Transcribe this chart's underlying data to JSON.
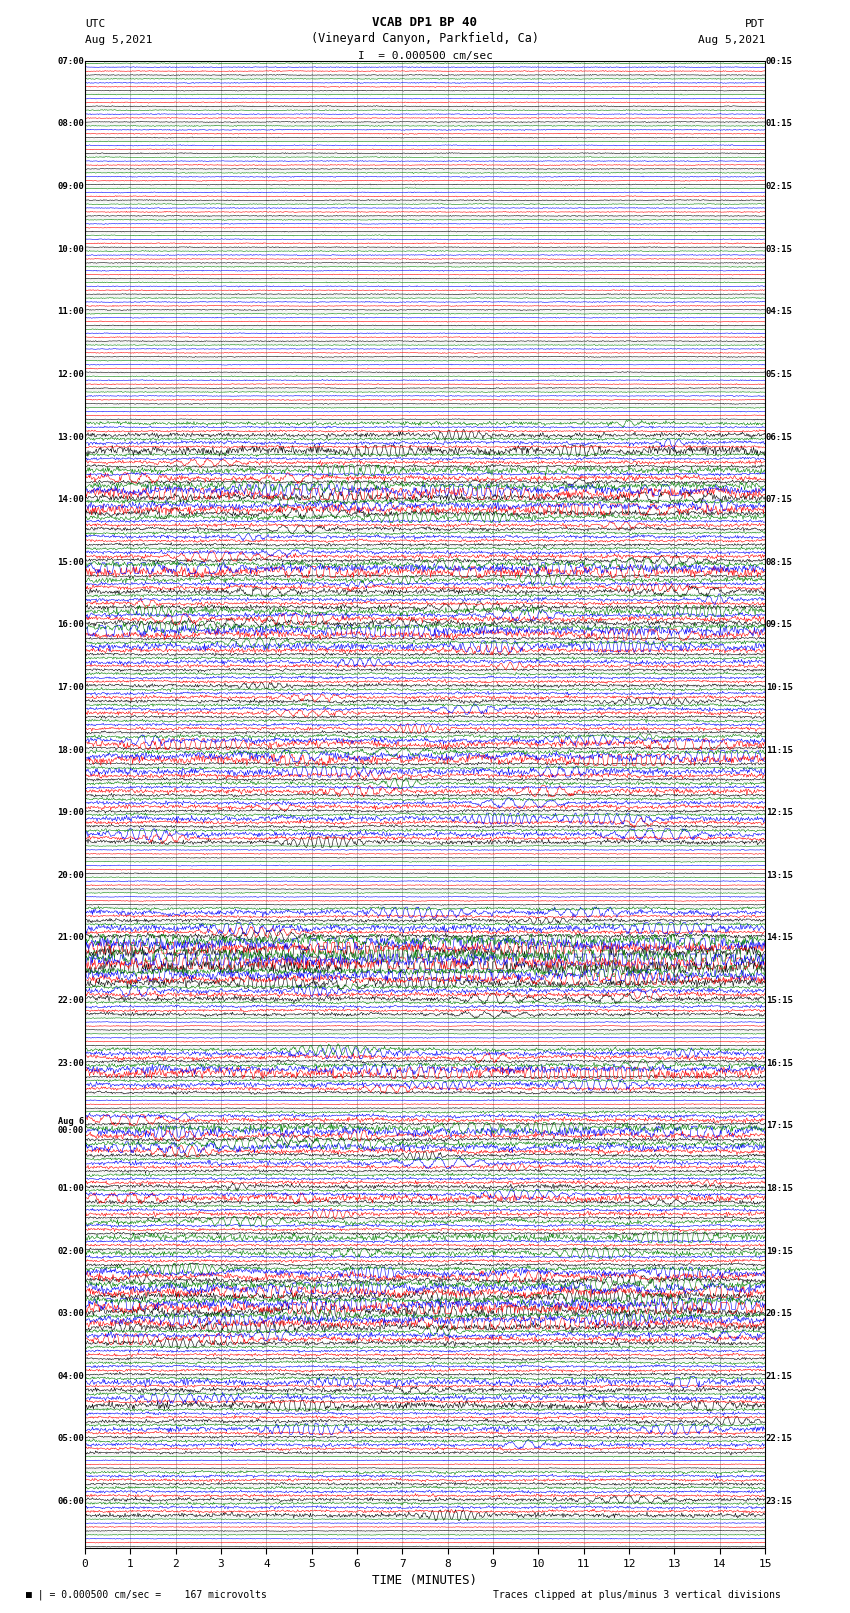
{
  "title_line1": "VCAB DP1 BP 40",
  "title_line2": "(Vineyard Canyon, Parkfield, Ca)",
  "scale_text": "I  = 0.000500 cm/sec",
  "utc_label": "UTC",
  "utc_date": "Aug 5,2021",
  "pdt_label": "PDT",
  "pdt_date": "Aug 5,2021",
  "xlabel": "TIME (MINUTES)",
  "bottom_left": "= 0.000500 cm/sec =    167 microvolts",
  "bottom_right": "Traces clipped at plus/minus 3 vertical divisions",
  "x_min": 0,
  "x_max": 15,
  "x_ticks": [
    0,
    1,
    2,
    3,
    4,
    5,
    6,
    7,
    8,
    9,
    10,
    11,
    12,
    13,
    14,
    15
  ],
  "bg_color": "#ffffff",
  "grid_color": "#888888",
  "trace_colors": [
    "black",
    "red",
    "blue",
    "green"
  ],
  "row_labels_utc": [
    "07:00",
    "",
    "",
    "",
    "08:00",
    "",
    "",
    "",
    "09:00",
    "",
    "",
    "",
    "10:00",
    "",
    "",
    "",
    "11:00",
    "",
    "",
    "",
    "12:00",
    "",
    "",
    "",
    "13:00",
    "",
    "",
    "",
    "14:00",
    "",
    "",
    "",
    "15:00",
    "",
    "",
    "",
    "16:00",
    "",
    "",
    "",
    "17:00",
    "",
    "",
    "",
    "18:00",
    "",
    "",
    "",
    "19:00",
    "",
    "",
    "",
    "20:00",
    "",
    "",
    "",
    "21:00",
    "",
    "",
    "",
    "22:00",
    "",
    "",
    "",
    "23:00",
    "",
    "",
    "",
    "Aug 6\n00:00",
    "",
    "",
    "",
    "01:00",
    "",
    "",
    "",
    "02:00",
    "",
    "",
    "",
    "03:00",
    "",
    "",
    "",
    "04:00",
    "",
    "",
    "",
    "05:00",
    "",
    "",
    "",
    "06:00",
    "",
    ""
  ],
  "row_labels_pdt": [
    "00:15",
    "",
    "",
    "",
    "01:15",
    "",
    "",
    "",
    "02:15",
    "",
    "",
    "",
    "03:15",
    "",
    "",
    "",
    "04:15",
    "",
    "",
    "",
    "05:15",
    "",
    "",
    "",
    "06:15",
    "",
    "",
    "",
    "07:15",
    "",
    "",
    "",
    "08:15",
    "",
    "",
    "",
    "09:15",
    "",
    "",
    "",
    "10:15",
    "",
    "",
    "",
    "11:15",
    "",
    "",
    "",
    "12:15",
    "",
    "",
    "",
    "13:15",
    "",
    "",
    "",
    "14:15",
    "",
    "",
    "",
    "15:15",
    "",
    "",
    "",
    "16:15",
    "",
    "",
    "",
    "17:15",
    "",
    "",
    "",
    "18:15",
    "",
    "",
    "",
    "19:15",
    "",
    "",
    "",
    "20:15",
    "",
    "",
    "",
    "21:15",
    "",
    "",
    "",
    "22:15",
    "",
    "",
    "",
    "23:15",
    "",
    ""
  ],
  "n_rows": 95,
  "traces_per_row": 4,
  "noise_seed": 42
}
